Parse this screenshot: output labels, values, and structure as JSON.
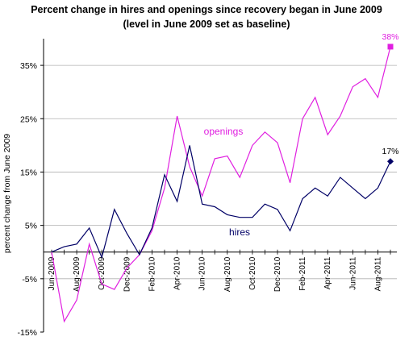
{
  "chart_data": {
    "type": "line",
    "title": "Percent change in hires and openings since recovery began in June 2009",
    "subtitle": "(level in June 2009 set as baseline)",
    "ylabel": "percent change from June 2009",
    "xlabel": "",
    "ylim": [
      -15,
      40
    ],
    "yticks": [
      -15,
      -5,
      5,
      15,
      25,
      35
    ],
    "ytick_labels": [
      "-15%",
      "-5%",
      "5%",
      "15%",
      "25%",
      "35%"
    ],
    "grid": "horizontal",
    "x": [
      "Jun-2009",
      "Jul-2009",
      "Aug-2009",
      "Sep-2009",
      "Oct-2009",
      "Nov-2009",
      "Dec-2009",
      "Jan-2010",
      "Feb-2010",
      "Mar-2010",
      "Apr-2010",
      "May-2010",
      "Jun-2010",
      "Jul-2010",
      "Aug-2010",
      "Sep-2010",
      "Oct-2010",
      "Nov-2010",
      "Dec-2010",
      "Jan-2011",
      "Feb-2011",
      "Mar-2011",
      "Apr-2011",
      "May-2011",
      "Jun-2011",
      "Jul-2011",
      "Aug-2011",
      "Sep-2011"
    ],
    "xtick_labels": [
      "Jun-2009",
      "Aug-2009",
      "Oct-2009",
      "Dec-2009",
      "Feb-2010",
      "Apr-2010",
      "Jun-2010",
      "Aug-2010",
      "Oct-2010",
      "Dec-2010",
      "Feb-2011",
      "Apr-2011",
      "Jun-2011",
      "Aug-2011"
    ],
    "series": [
      {
        "name": "openings",
        "color": "#e020e0",
        "values": [
          0,
          -13,
          -9,
          1.5,
          -6,
          -7,
          -3,
          -0.5,
          4,
          12,
          25.5,
          16,
          10.5,
          17.5,
          18,
          14,
          20,
          22.5,
          20.5,
          13,
          25,
          29,
          22,
          25.5,
          31,
          32.5,
          29,
          38.5
        ],
        "end_label": "38%"
      },
      {
        "name": "hires",
        "color": "#000066",
        "values": [
          0,
          1,
          1.5,
          4.5,
          -1,
          8,
          3.5,
          -0.5,
          4.5,
          14.5,
          9.5,
          20,
          9,
          8.5,
          7,
          6.5,
          6.5,
          9,
          8,
          4,
          10,
          12,
          10.5,
          14,
          12,
          10,
          12,
          17
        ],
        "end_label": "17%"
      }
    ],
    "annotations": {
      "openings": "openings",
      "hires": "hires"
    }
  }
}
